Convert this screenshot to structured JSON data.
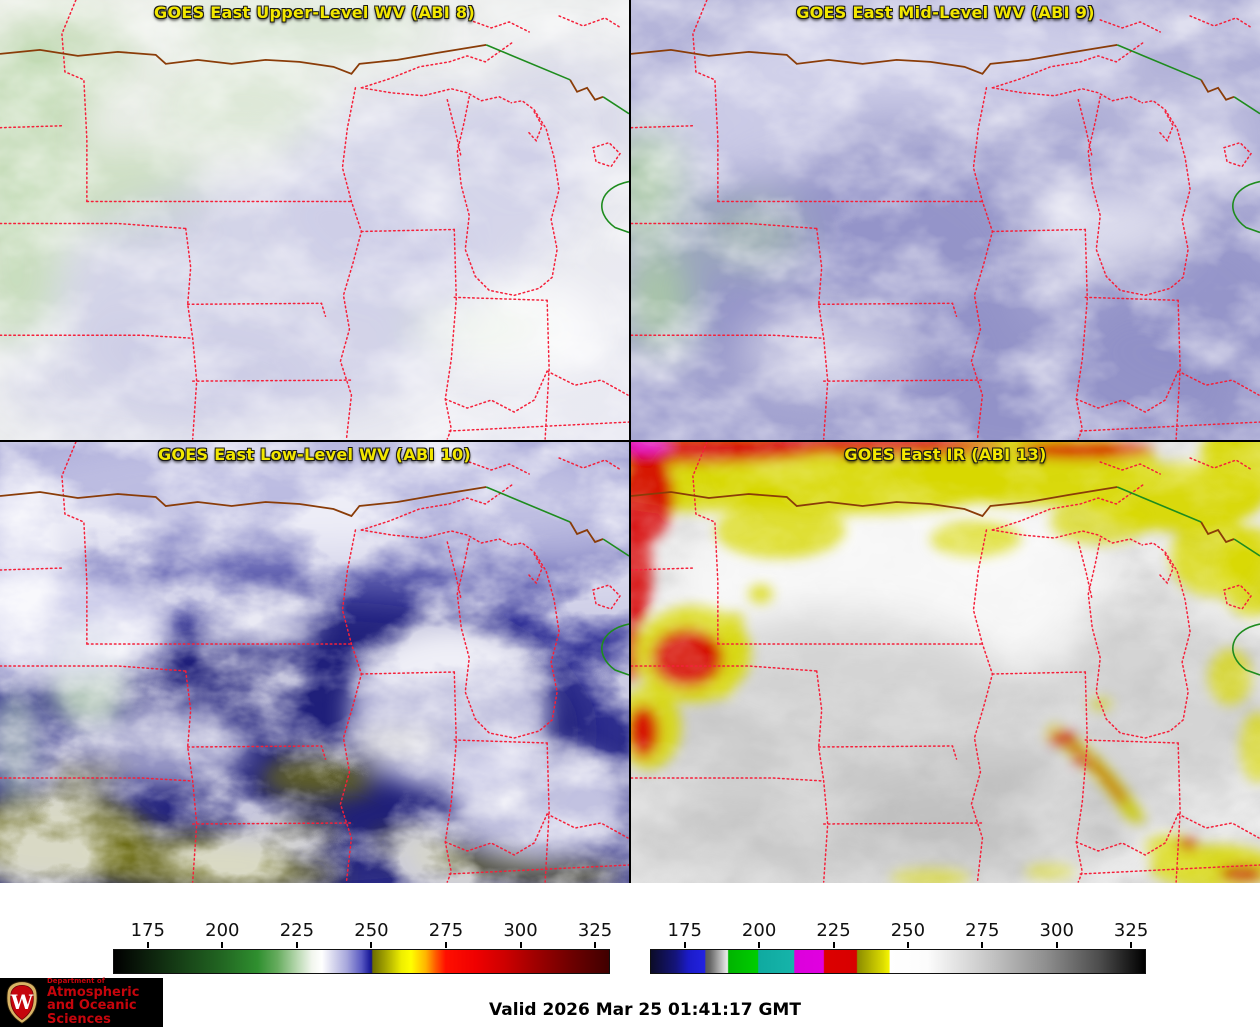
{
  "panels": [
    {
      "title": "GOES East Upper-Level WV (ABI 8)"
    },
    {
      "title": "GOES East Mid-Level WV (ABI 9)"
    },
    {
      "title": "GOES East Low-Level WV (ABI 10)"
    },
    {
      "title": "GOES East IR (ABI 13)"
    }
  ],
  "colorbars": {
    "tick_positions_pct": [
      7,
      22,
      37,
      52,
      67,
      82,
      97
    ],
    "wv": {
      "label_values": [
        "175",
        "200",
        "225",
        "250",
        "275",
        "300",
        "325"
      ],
      "stops": [
        "#000000 0%",
        "#0b1c0b 6%",
        "#174217 14%",
        "#226722 22%",
        "#2f8f2f 29%",
        "#66ac5e 33%",
        "#b8d8b0 37%",
        "#f2f6ee 40%",
        "#ffffff 42%",
        "#dcdcf0 44%",
        "#a8a8dc 47%",
        "#5a5ac2 50%",
        "#2323a0 51.5%",
        "#14148c 52%",
        "#6e6e00 52.3%",
        "#a8a800 55%",
        "#eded00 58%",
        "#ffff00 60%",
        "#ffb400 63%",
        "#ff5a00 65%",
        "#ff0f00 67%",
        "#f00000 73%",
        "#cd0000 79%",
        "#a00000 85%",
        "#700000 92%",
        "#400000 100%"
      ]
    },
    "ir": {
      "label_values": [
        "175",
        "200",
        "225",
        "250",
        "275",
        "300",
        "325"
      ],
      "stops": [
        "#0c0c28 0%",
        "#14147a 5%",
        "#1b1bc8 7.6%",
        "#2222e0 10.9%",
        "#5a5a5a 11.1%",
        "#686868 12%",
        "#ededed 15.5%",
        "#00b400 15.7%",
        "#00cd00 21.6%",
        "#0faaa0 21.8%",
        "#16b4aa 28.9%",
        "#dc00dc 29.1%",
        "#e000e0 34.9%",
        "#dc0000 35.1%",
        "#d80000 41.6%",
        "#8c8c00 41.8%",
        "#dcdc00 47%",
        "#f5f500 48.2%",
        "#ffffff 48.4%",
        "#fcfcfc 56%",
        "#c8c8c8 68%",
        "#8e8e8e 80%",
        "#4b4b4b 91%",
        "#000000 100%"
      ]
    }
  },
  "footer": {
    "valid_text": "Valid 2026 Mar 25 01:41:17 GMT",
    "logo": {
      "dept": "Department of",
      "line2": "Atmospheric",
      "line3": "and Oceanic Sciences",
      "monogram": "W"
    }
  },
  "colors": {
    "title_yellow": "#f2e700",
    "boundary_red": "#f5203a",
    "shoreline_brown": "#8a3c08",
    "border_green": "#1e8c1e",
    "uw_red": "#c5050c"
  }
}
